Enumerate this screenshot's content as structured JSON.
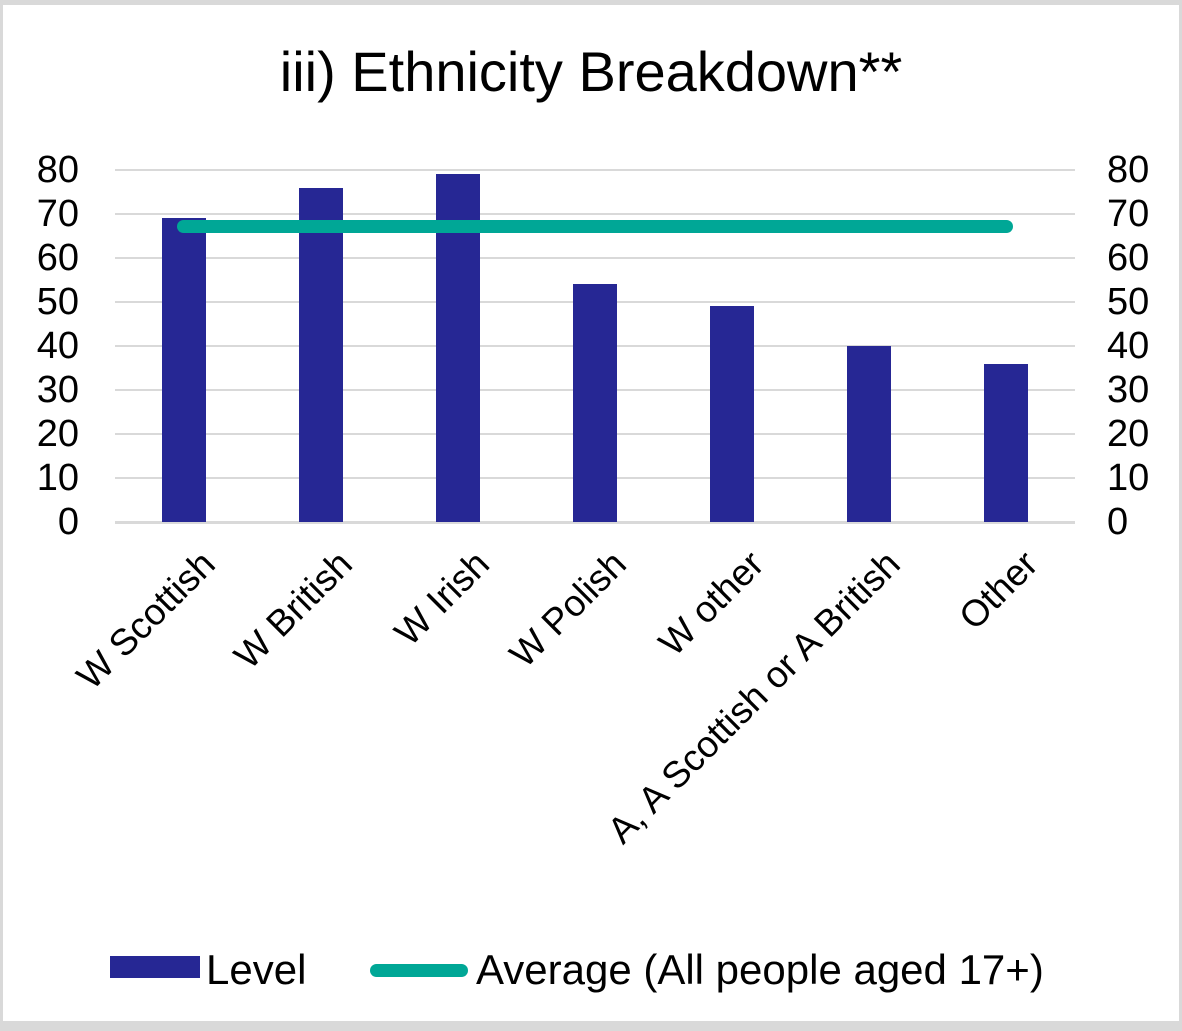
{
  "chart_data": {
    "type": "bar",
    "title": "iii) Ethnicity Breakdown**",
    "categories": [
      "W Scottish",
      "W British",
      "W Irish",
      "W Polish",
      "W other",
      "A, A Scottish or A British",
      "Other"
    ],
    "series": [
      {
        "name": "Level",
        "type": "bar",
        "color": "#262794",
        "values": [
          69,
          76,
          79,
          54,
          49,
          40,
          36
        ]
      },
      {
        "name": "Average (All people aged 17+)",
        "type": "line",
        "color": "#00A796",
        "value": 67
      }
    ],
    "xlabel": "",
    "ylabel": "",
    "ylim": [
      0,
      80
    ],
    "yticks": [
      0,
      10,
      20,
      30,
      40,
      50,
      60,
      70,
      80
    ],
    "dual_axis_labels": true,
    "grid": true,
    "grid_color": "#d9d9d9",
    "background_color": "#ffffff",
    "frame_border_color": "#d9d9d9",
    "text_color": "#000000",
    "legend_position": "bottom"
  }
}
